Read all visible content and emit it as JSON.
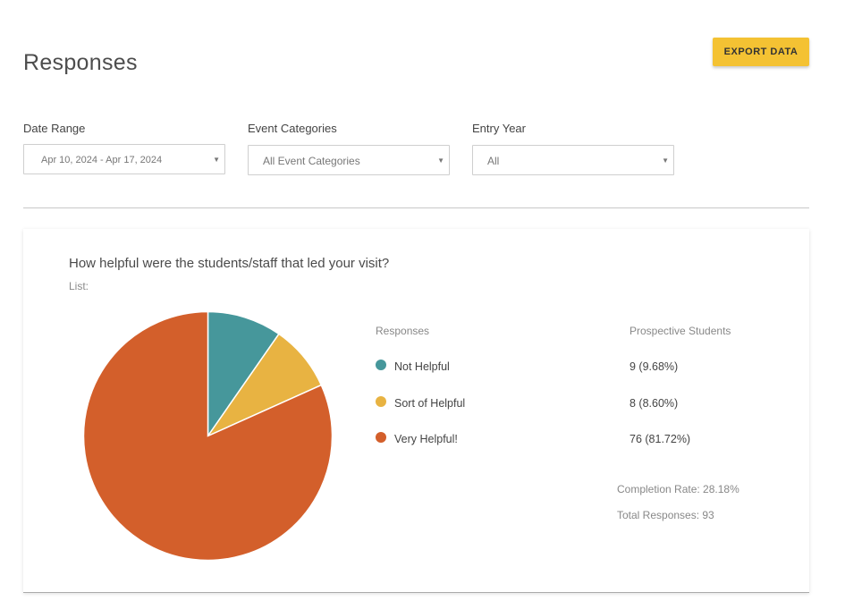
{
  "header": {
    "title": "Responses",
    "export_label": "EXPORT DATA"
  },
  "filters": {
    "date_range": {
      "label": "Date Range",
      "value": "Apr 10, 2024 - Apr 17, 2024"
    },
    "event_categories": {
      "label": "Event Categories",
      "value": "All Event Categories"
    },
    "entry_year": {
      "label": "Entry Year",
      "value": "All"
    }
  },
  "colors": {
    "accent": "#f4c233",
    "not_helpful": "#46979b",
    "sort_of_helpful": "#e8b342",
    "very_helpful": "#d35f2b"
  },
  "card": {
    "question": "How helpful were the students/staff that led your visit?",
    "list_label": "List:",
    "responses_header": "Responses",
    "audience_header": "Prospective Students",
    "legend": [
      {
        "label": "Not Helpful",
        "value": "9 (9.68%)"
      },
      {
        "label": "Sort of Helpful",
        "value": "8 (8.60%)"
      },
      {
        "label": "Very Helpful!",
        "value": "76 (81.72%)"
      }
    ],
    "completion_rate": "Completion Rate: 28.18%",
    "total_responses": "Total Responses: 93"
  },
  "chart_data": {
    "type": "pie",
    "categories": [
      "Not Helpful",
      "Sort of Helpful",
      "Very Helpful!"
    ],
    "values": [
      9,
      8,
      76
    ],
    "percentages": [
      9.68,
      8.6,
      81.72
    ],
    "colors": [
      "#46979b",
      "#e8b342",
      "#d35f2b"
    ]
  }
}
